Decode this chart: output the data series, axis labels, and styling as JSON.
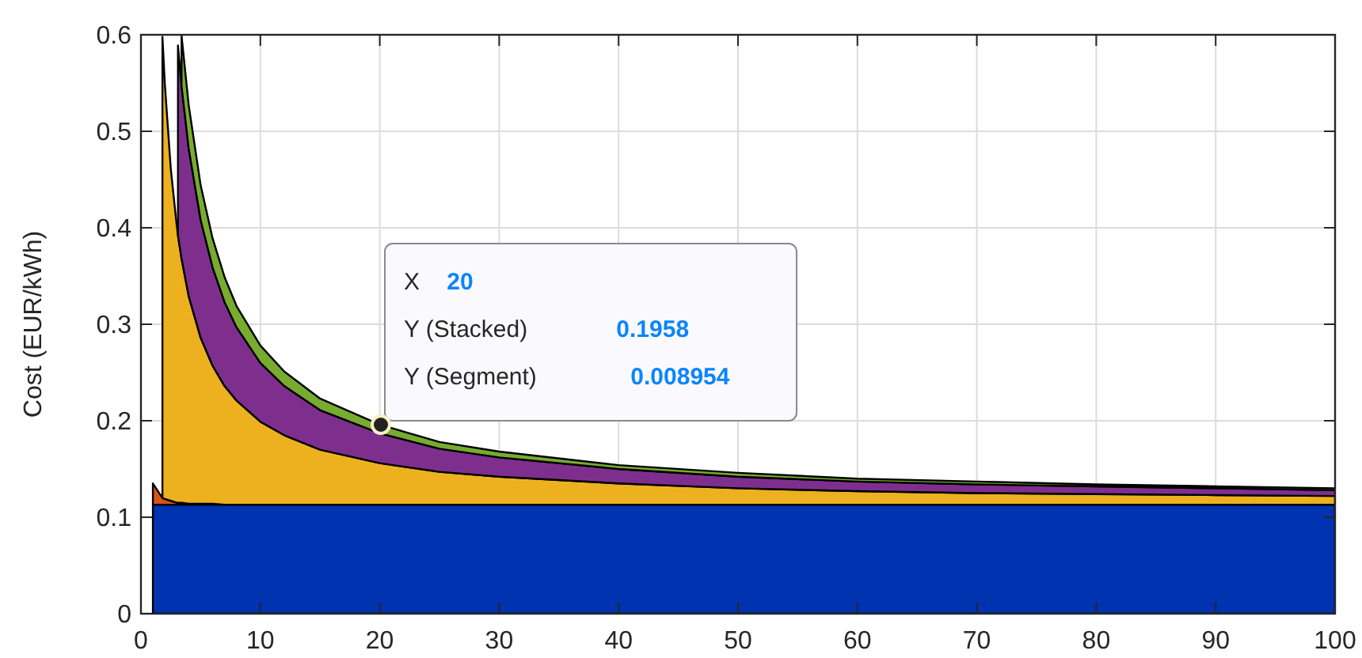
{
  "chart_data": {
    "type": "area",
    "stacked": true,
    "ylabel": "Cost (EUR/kWh)",
    "x": [
      1,
      1.8,
      2,
      2.5,
      3,
      3.1,
      3.4,
      4,
      5,
      6,
      7,
      8,
      10,
      12,
      15,
      20,
      25,
      30,
      40,
      50,
      60,
      70,
      80,
      90,
      100
    ],
    "series": [
      {
        "color": "#0033b0",
        "values": [
          0.113,
          0.113,
          0.113,
          0.113,
          0.113,
          0.113,
          0.113,
          0.113,
          0.113,
          0.113,
          0.113,
          0.113,
          0.113,
          0.113,
          0.113,
          0.113,
          0.113,
          0.113,
          0.113,
          0.113,
          0.113,
          0.113,
          0.113,
          0.113,
          0.113
        ]
      },
      {
        "color": "#d95319",
        "values": [
          0.022,
          0.007,
          0.006,
          0.004,
          0.002,
          0.002,
          0.002,
          0.001,
          0.001,
          0.001,
          0,
          0,
          0,
          0,
          0,
          0,
          0,
          0,
          0,
          0,
          0,
          0,
          0,
          0,
          0
        ]
      },
      {
        "color": "#edb120",
        "values": [
          null,
          0.478,
          0.43,
          0.344,
          0.287,
          0.277,
          0.253,
          0.215,
          0.172,
          0.143,
          0.123,
          0.108,
          0.086,
          0.072,
          0.057,
          0.043,
          0.034,
          0.029,
          0.022,
          0.017,
          0.014,
          0.012,
          0.011,
          0.01,
          0.009
        ]
      },
      {
        "color": "#7e2f8e",
        "values": [
          null,
          null,
          null,
          null,
          null,
          0.197,
          0.179,
          0.153,
          0.122,
          0.102,
          0.087,
          0.076,
          0.061,
          0.051,
          0.041,
          0.031,
          0.024,
          0.02,
          0.015,
          0.012,
          0.01,
          0.009,
          0.008,
          0.007,
          0.006
        ]
      },
      {
        "color": "#77ac30",
        "values": [
          null,
          null,
          null,
          null,
          null,
          null,
          0.052,
          0.045,
          0.036,
          0.03,
          0.026,
          0.022,
          0.018,
          0.015,
          0.012,
          0.008954,
          0.007,
          0.006,
          0.004,
          0.004,
          0.003,
          0.003,
          0.002,
          0.002,
          0.002
        ]
      }
    ],
    "xlim": [
      0,
      100
    ],
    "ylim": [
      0,
      0.6
    ],
    "xticks": [
      0,
      10,
      20,
      30,
      40,
      50,
      60,
      70,
      80,
      90,
      100
    ],
    "yticks": [
      0,
      0.1,
      0.2,
      0.3,
      0.4,
      0.5,
      0.6
    ],
    "grid": true,
    "annotations": [
      "X 20",
      "Y (Stacked) 0.1958",
      "Y (Segment) 0.008954"
    ]
  }
}
